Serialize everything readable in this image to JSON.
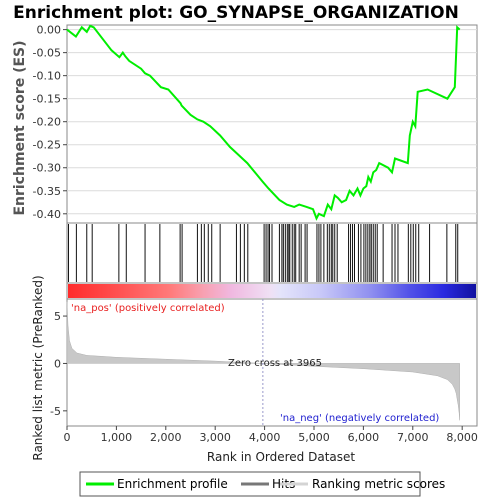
{
  "chart_data": [
    {
      "type": "line",
      "title": "Enrichment plot: GO_SYNAPSE_ORGANIZATION",
      "ylabel": "Enrichment score (ES)",
      "ylim": [
        -0.42,
        0.01
      ],
      "yticks": [
        "0.00",
        "-0.05",
        "-0.10",
        "-0.15",
        "-0.20",
        "-0.25",
        "-0.30",
        "-0.35",
        "-0.40"
      ],
      "series": [
        {
          "name": "Enrichment profile",
          "color": "#00ee00",
          "x": [
            0,
            180,
            300,
            400,
            470,
            540,
            900,
            1060,
            1130,
            1180,
            1260,
            1500,
            1580,
            1680,
            1900,
            2050,
            2300,
            2320,
            2500,
            2640,
            2760,
            2900,
            3100,
            3300,
            3450,
            3650,
            3960,
            4080,
            4300,
            4450,
            4600,
            4700,
            4850,
            4980,
            5050,
            5100,
            5200,
            5280,
            5350,
            5420,
            5480,
            5560,
            5650,
            5720,
            5800,
            5880,
            5940,
            6000,
            6060,
            6100,
            6150,
            6200,
            6260,
            6320,
            6500,
            6580,
            6640,
            6900,
            6940,
            7000,
            7050,
            7100,
            7300,
            7700,
            7850,
            7900,
            7950
          ],
          "y": [
            0.0,
            -0.015,
            0.005,
            -0.005,
            0.008,
            0.005,
            -0.045,
            -0.06,
            -0.05,
            -0.058,
            -0.068,
            -0.085,
            -0.095,
            -0.1,
            -0.125,
            -0.13,
            -0.16,
            -0.165,
            -0.185,
            -0.195,
            -0.2,
            -0.21,
            -0.23,
            -0.255,
            -0.27,
            -0.29,
            -0.33,
            -0.345,
            -0.37,
            -0.38,
            -0.385,
            -0.38,
            -0.385,
            -0.39,
            -0.41,
            -0.4,
            -0.405,
            -0.38,
            -0.39,
            -0.36,
            -0.365,
            -0.375,
            -0.37,
            -0.35,
            -0.36,
            -0.345,
            -0.36,
            -0.345,
            -0.34,
            -0.32,
            -0.33,
            -0.31,
            -0.305,
            -0.29,
            -0.3,
            -0.31,
            -0.28,
            -0.29,
            -0.23,
            -0.2,
            -0.21,
            -0.135,
            -0.13,
            -0.15,
            -0.125,
            0.005,
            0.0
          ]
        }
      ],
      "hits": [
        30,
        190,
        400,
        510,
        1050,
        1200,
        1580,
        1880,
        2290,
        2330,
        2640,
        2720,
        2780,
        2860,
        2930,
        3100,
        3430,
        3510,
        3590,
        3660,
        3990,
        4030,
        4070,
        4100,
        4150,
        4300,
        4350,
        4380,
        4420,
        4460,
        4490,
        4510,
        4560,
        4600,
        4630,
        4700,
        4740,
        4820,
        4860,
        5060,
        5100,
        5140,
        5200,
        5270,
        5310,
        5350,
        5380,
        5420,
        5470,
        5700,
        5740,
        5780,
        5820,
        5900,
        5950,
        6010,
        6050,
        6090,
        6130,
        6160,
        6200,
        6240,
        6280,
        6400,
        6580,
        6640,
        6700,
        6910,
        6960,
        7010,
        7060,
        7120,
        7340,
        7690,
        7870,
        7910
      ]
    },
    {
      "type": "area",
      "ylabel": "Ranked list metric (PreRanked)",
      "xlabel": "Rank in Ordered Dataset",
      "xlim": [
        0,
        8300
      ],
      "ylim": [
        -6.6,
        6.8
      ],
      "xticks": [
        "0",
        "1,000",
        "2,000",
        "3,000",
        "4,000",
        "5,000",
        "6,000",
        "7,000",
        "8,000"
      ],
      "yticks": [
        "5",
        "0",
        "-5"
      ],
      "zero_cross": 3965,
      "series": [
        {
          "name": "Ranking metric scores",
          "color": "#c8c8c8",
          "x": [
            0,
            20,
            50,
            100,
            200,
            400,
            700,
            1000,
            2000,
            3000,
            3965,
            5000,
            6000,
            7000,
            7500,
            7700,
            7800,
            7850,
            7880,
            7900,
            7920,
            7940,
            7950
          ],
          "y": [
            6.5,
            4.0,
            2.4,
            1.6,
            1.1,
            0.85,
            0.75,
            0.65,
            0.45,
            0.25,
            0.0,
            -0.3,
            -0.55,
            -0.9,
            -1.3,
            -1.7,
            -2.2,
            -2.7,
            -3.2,
            -3.8,
            -4.4,
            -5.3,
            -6.0
          ]
        }
      ]
    }
  ],
  "labels": {
    "pos_label": "'na_pos' (positively correlated)",
    "neg_label": "'na_neg' (negatively correlated)",
    "zero_cross_label": "Zero cross at 3965"
  },
  "legend": {
    "items": [
      "Enrichment profile",
      "Hits",
      "Ranking metric scores"
    ]
  },
  "colors": {
    "profile": "#00ee00",
    "pos_label": "#e82020",
    "neg_label": "#2020d0",
    "zero_cross_line": "#9999cc"
  }
}
